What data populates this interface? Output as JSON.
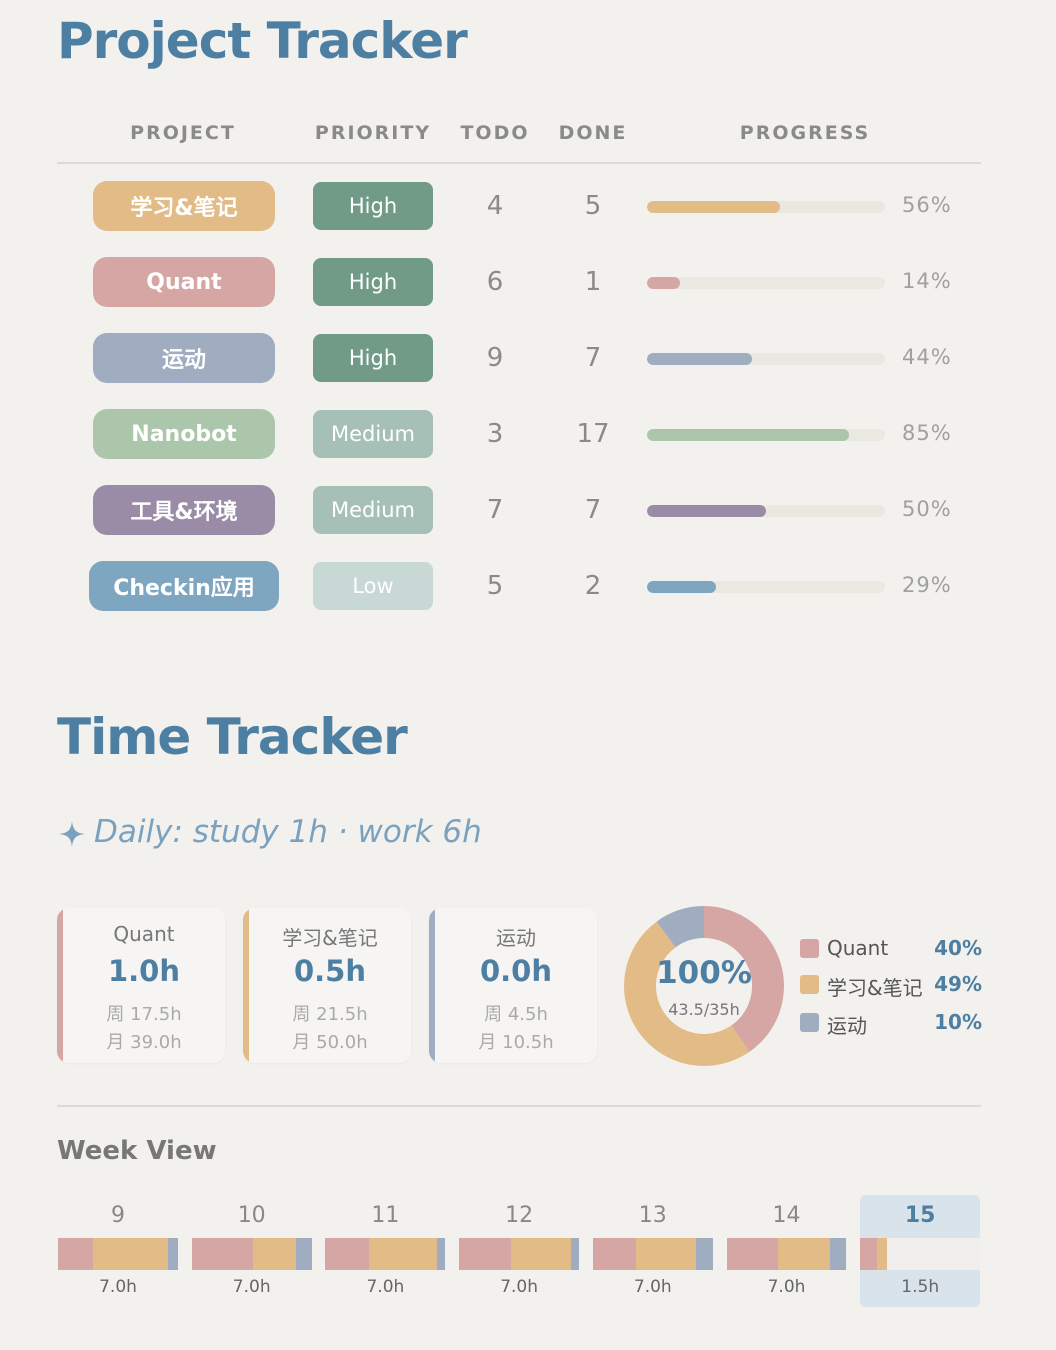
{
  "project_tracker": {
    "title": "Project Tracker",
    "headers": [
      "PROJECT",
      "PRIORITY",
      "TODO",
      "DONE",
      "PROGRESS"
    ],
    "rows": [
      {
        "name": "学习&笔记",
        "color": "#e2bb87",
        "priority": "High",
        "priority_color": "#729b87",
        "todo": "4",
        "done": "5",
        "progress": 0.56,
        "progress_label": "56%"
      },
      {
        "name": "Quant",
        "color": "#d6a6a4",
        "priority": "High",
        "priority_color": "#729b87",
        "todo": "6",
        "done": "1",
        "progress": 0.14,
        "progress_label": "14%"
      },
      {
        "name": "运动",
        "color": "#a0adc1",
        "priority": "High",
        "priority_color": "#729b87",
        "todo": "9",
        "done": "7",
        "progress": 0.44,
        "progress_label": "44%"
      },
      {
        "name": "Nanobot",
        "color": "#abc6aa",
        "priority": "Medium",
        "priority_color": "#a6c0b8",
        "todo": "3",
        "done": "17",
        "progress": 0.85,
        "progress_label": "85%"
      },
      {
        "name": "工具&环境",
        "color": "#9a8ca6",
        "priority": "Medium",
        "priority_color": "#a6c0b8",
        "todo": "7",
        "done": "7",
        "progress": 0.5,
        "progress_label": "50%"
      },
      {
        "name": "Checkin应用",
        "color": "#7fa6c0",
        "priority": "Low",
        "priority_color": "#c8d8d4",
        "todo": "5",
        "done": "2",
        "progress": 0.29,
        "progress_label": "29%"
      }
    ]
  },
  "time_tracker": {
    "title": "Time Tracker",
    "daily_icon": "sparkle-icon",
    "daily_goal": "Daily: study 1h · work 6h",
    "cards": [
      {
        "name": "Quant",
        "color": "#d6a6a4",
        "today": "1.0h",
        "week": "周 17.5h",
        "month": "月 39.0h"
      },
      {
        "name": "学习&笔记",
        "color": "#e2bb87",
        "today": "0.5h",
        "week": "周 21.5h",
        "month": "月 50.0h"
      },
      {
        "name": "运动",
        "color": "#a0adc1",
        "today": "0.0h",
        "week": "周 4.5h",
        "month": "月 10.5h"
      }
    ],
    "donut": {
      "center_value": "100%",
      "center_sub": "43.5/35h",
      "segments": [
        {
          "name": "Quant",
          "value": 0.4,
          "label": "40%",
          "color": "#d6a6a4"
        },
        {
          "name": "学习&笔记",
          "value": 0.49,
          "label": "49%",
          "color": "#e2bb87"
        },
        {
          "name": "运动",
          "value": 0.1,
          "label": "10%",
          "color": "#a0adc1"
        }
      ]
    },
    "week_view": {
      "title": "Week View",
      "days": [
        {
          "day": "9",
          "hours": "7.0h",
          "segments": [
            0.29,
            0.63,
            0.08
          ]
        },
        {
          "day": "10",
          "hours": "7.0h",
          "segments": [
            0.51,
            0.36,
            0.13
          ]
        },
        {
          "day": "11",
          "hours": "7.0h",
          "segments": [
            0.36,
            0.57,
            0.07
          ]
        },
        {
          "day": "12",
          "hours": "7.0h",
          "segments": [
            0.43,
            0.5,
            0.07
          ]
        },
        {
          "day": "13",
          "hours": "7.0h",
          "segments": [
            0.36,
            0.5,
            0.14
          ]
        },
        {
          "day": "14",
          "hours": "7.0h",
          "segments": [
            0.43,
            0.43,
            0.14
          ]
        },
        {
          "day": "15",
          "hours": "1.5h",
          "segments": [
            0.14,
            0.08,
            0.0
          ],
          "today": true
        }
      ]
    }
  }
}
